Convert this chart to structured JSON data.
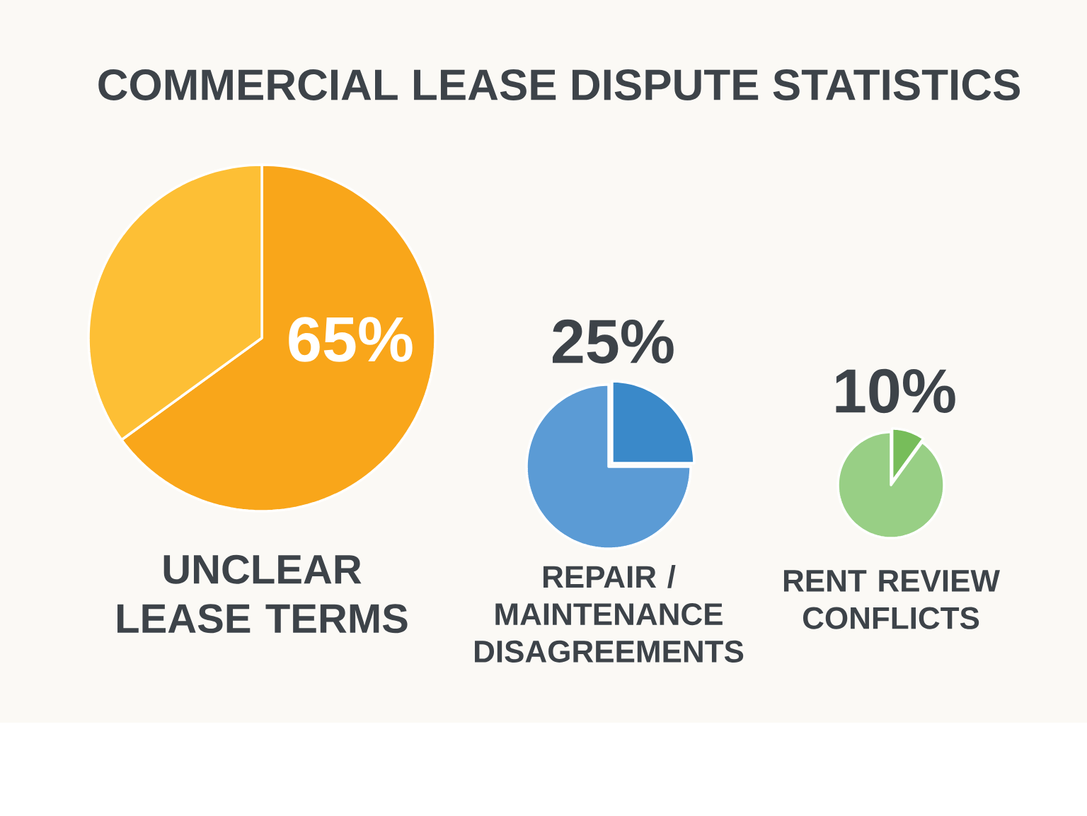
{
  "chart_data": [
    {
      "type": "pie",
      "title": "COMMERCIAL LEASE DISPUTE STATISTICS",
      "annotations": [
        "UNCLEAR LEASE TERMS"
      ],
      "categories": [
        null,
        null
      ],
      "values": [
        65,
        35
      ],
      "colors": [
        "#f9a61a",
        "#fdbf35"
      ],
      "value_labels": [
        "65%",
        null
      ]
    },
    {
      "type": "pie",
      "annotations": [
        "REPAIR / MAINTENANCE DISAGREEMENTS"
      ],
      "categories": [
        null,
        null
      ],
      "values": [
        25,
        75
      ],
      "colors": [
        "#3a89c9",
        "#5b9bd5"
      ],
      "value_labels": [
        "25%",
        null
      ]
    },
    {
      "type": "pie",
      "annotations": [
        "RENT REVIEW CONFLICTS"
      ],
      "categories": [
        null,
        null
      ],
      "values": [
        10,
        90
      ],
      "colors": [
        "#77bd5a",
        "#98cf85"
      ],
      "value_labels": [
        "10%",
        null
      ]
    }
  ]
}
